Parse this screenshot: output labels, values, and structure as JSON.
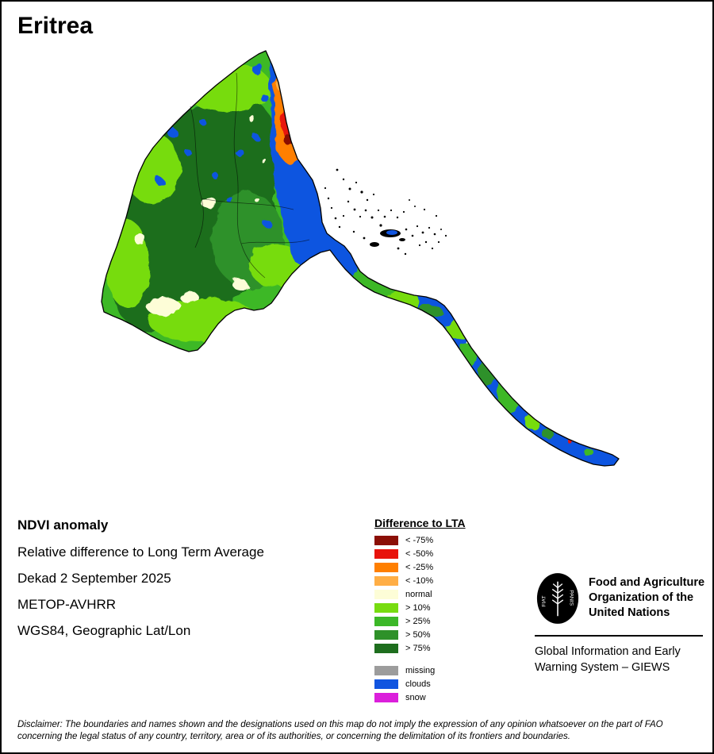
{
  "title": "Eritrea",
  "info": {
    "heading": "NDVI anomaly",
    "lines": [
      "Relative difference to Long Term Average",
      "Dekad 2 September 2025",
      "METOP-AVHRR",
      "WGS84, Geographic Lat/Lon"
    ]
  },
  "legend": {
    "title": "Difference to LTA",
    "items": [
      {
        "label": "< -75%",
        "color": "#8B0F06"
      },
      {
        "label": "< -50%",
        "color": "#E8130C"
      },
      {
        "label": "< -25%",
        "color": "#FF7F00"
      },
      {
        "label": "< -10%",
        "color": "#FFAE45"
      },
      {
        "label": "normal",
        "color": "#FDFDD7"
      },
      {
        "label": "> 10%",
        "color": "#77DC10"
      },
      {
        "label": "> 25%",
        "color": "#3CB828"
      },
      {
        "label": "> 50%",
        "color": "#2E9129"
      },
      {
        "label": "> 75%",
        "color": "#1E6E1E"
      }
    ],
    "extra_items": [
      {
        "label": "missing",
        "color": "#9C9C9C"
      },
      {
        "label": "clouds",
        "color": "#1155E0"
      },
      {
        "label": "snow",
        "color": "#DB1FDB"
      }
    ]
  },
  "footer": {
    "fao_motto_left": "FIAT",
    "fao_motto_right": "PANIS",
    "org_name_lines": [
      "Food and Agriculture",
      "Organization of the",
      "United Nations"
    ],
    "giews_lines": [
      "Global Information and Early",
      "Warning System – GIEWS"
    ]
  },
  "disclaimer_lines": [
    "Disclaimer: The boundaries and names shown and the designations used on this map do not imply the expression of any opinion whatsoever on the part of FAO",
    "concerning the legal status of any country, territory, area or of its authorities, or concerning the delimitation of its frontiers and boundaries."
  ]
}
